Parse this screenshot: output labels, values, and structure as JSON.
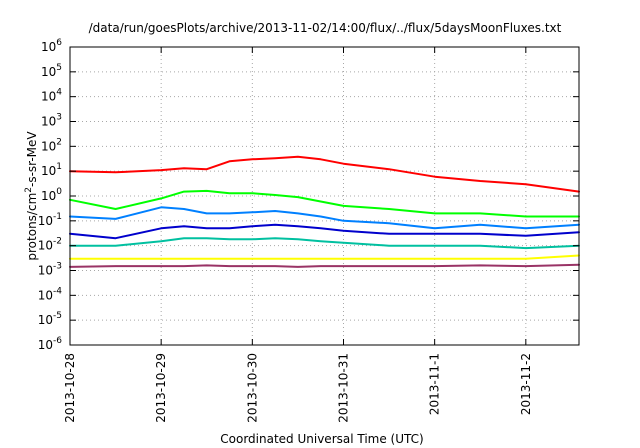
{
  "chart_data": {
    "type": "line",
    "title": "/data/run/goesPlots/archive/2013-11-02/14:00/flux/../flux/5daysMoonFluxes.txt",
    "xlabel": "Coordinated Universal Time (UTC)",
    "ylabel": "protons/cm²-s-sr-MeV",
    "ylabel_parts": {
      "before": "protons/cm",
      "sup": "2",
      "after": "-s-sr-MeV"
    },
    "xscale": "time",
    "yscale": "log",
    "xlim": [
      "2013-10-28T00:00",
      "2013-11-02T14:00"
    ],
    "ylim": [
      1e-06,
      1000000.0
    ],
    "grid": true,
    "legend": "none",
    "x_ticks": [
      {
        "value": "2013-10-28T00:00",
        "label": "2013-10-28"
      },
      {
        "value": "2013-10-29T00:00",
        "label": "2013-10-29"
      },
      {
        "value": "2013-10-30T00:00",
        "label": "2013-10-30"
      },
      {
        "value": "2013-10-31T00:00",
        "label": "2013-10-31"
      },
      {
        "value": "2013-11-01T00:00",
        "label": "2013-11-1"
      },
      {
        "value": "2013-11-02T00:00",
        "label": "2013-11-2"
      }
    ],
    "y_ticks": [
      {
        "value": 1e-06,
        "base": "10",
        "exp": "-6"
      },
      {
        "value": 1e-05,
        "base": "10",
        "exp": "-5"
      },
      {
        "value": 0.0001,
        "base": "10",
        "exp": "-4"
      },
      {
        "value": 0.001,
        "base": "10",
        "exp": "-3"
      },
      {
        "value": 0.01,
        "base": "10",
        "exp": "-2"
      },
      {
        "value": 0.1,
        "base": "10",
        "exp": "-1"
      },
      {
        "value": 1,
        "base": "10",
        "exp": "0"
      },
      {
        "value": 10,
        "base": "10",
        "exp": "1"
      },
      {
        "value": 100,
        "base": "10",
        "exp": "2"
      },
      {
        "value": 1000,
        "base": "10",
        "exp": "3"
      },
      {
        "value": 10000,
        "base": "10",
        "exp": "4"
      },
      {
        "value": 100000,
        "base": "10",
        "exp": "5"
      },
      {
        "value": 1000000,
        "base": "10",
        "exp": "6"
      }
    ],
    "x_dates": [
      "2013-10-28T00:00",
      "2013-10-28T12:00",
      "2013-10-29T00:00",
      "2013-10-29T06:00",
      "2013-10-29T12:00",
      "2013-10-29T18:00",
      "2013-10-30T00:00",
      "2013-10-30T06:00",
      "2013-10-30T12:00",
      "2013-10-30T18:00",
      "2013-10-31T00:00",
      "2013-10-31T12:00",
      "2013-11-01T00:00",
      "2013-11-01T12:00",
      "2013-11-02T00:00",
      "2013-11-02T14:00"
    ],
    "series": [
      {
        "color": "#ff0000",
        "values": [
          10,
          9,
          11,
          13,
          12,
          25,
          30,
          33,
          38,
          30,
          20,
          12,
          6,
          4,
          3,
          1.5
        ]
      },
      {
        "color": "#00ff00",
        "values": [
          0.7,
          0.3,
          0.8,
          1.5,
          1.6,
          1.3,
          1.3,
          1.1,
          0.9,
          0.6,
          0.4,
          0.3,
          0.2,
          0.2,
          0.15,
          0.15
        ]
      },
      {
        "color": "#0080ff",
        "values": [
          0.15,
          0.12,
          0.35,
          0.3,
          0.2,
          0.2,
          0.22,
          0.25,
          0.2,
          0.15,
          0.1,
          0.08,
          0.05,
          0.07,
          0.05,
          0.07
        ]
      },
      {
        "color": "#0000cc",
        "values": [
          0.03,
          0.02,
          0.05,
          0.06,
          0.05,
          0.05,
          0.06,
          0.07,
          0.06,
          0.05,
          0.04,
          0.03,
          0.03,
          0.03,
          0.025,
          0.035
        ]
      },
      {
        "color": "#00c0a0",
        "values": [
          0.01,
          0.01,
          0.015,
          0.02,
          0.02,
          0.018,
          0.018,
          0.02,
          0.018,
          0.015,
          0.013,
          0.01,
          0.01,
          0.01,
          0.008,
          0.01
        ]
      },
      {
        "color": "#ffff00",
        "values": [
          0.003,
          0.003,
          0.003,
          0.003,
          0.003,
          0.003,
          0.003,
          0.003,
          0.003,
          0.003,
          0.003,
          0.003,
          0.003,
          0.003,
          0.003,
          0.004
        ]
      },
      {
        "color": "#993366",
        "values": [
          0.0014,
          0.0015,
          0.0015,
          0.0015,
          0.0016,
          0.0015,
          0.0015,
          0.0015,
          0.0014,
          0.0015,
          0.0015,
          0.0015,
          0.0015,
          0.0016,
          0.0015,
          0.0017
        ]
      }
    ]
  }
}
